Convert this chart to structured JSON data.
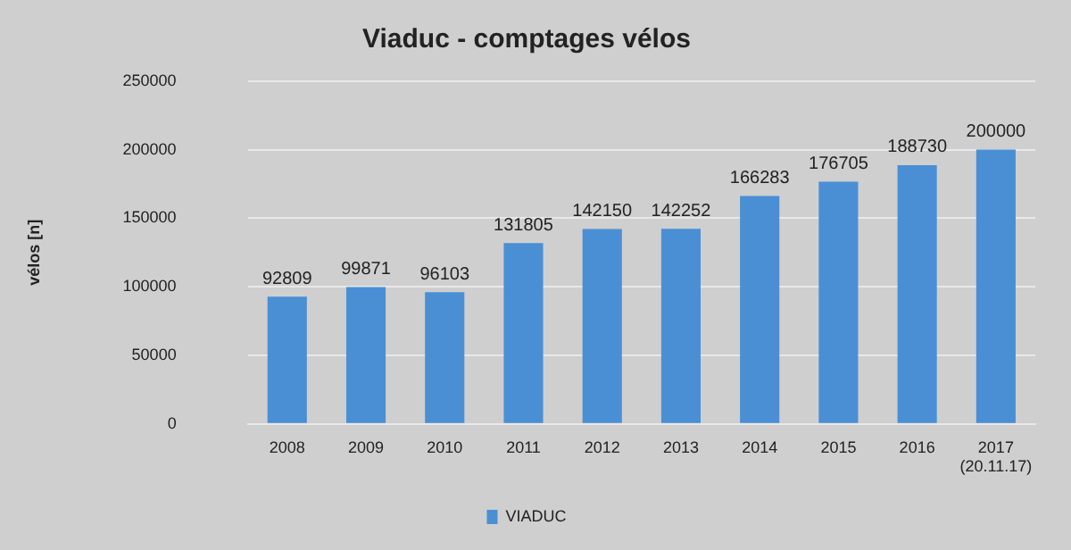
{
  "chart_data": {
    "type": "bar",
    "title": "Viaduc - comptages vélos",
    "ylabel": "vélos [n]",
    "categories": [
      "2008",
      "2009",
      "2010",
      "2011",
      "2012",
      "2013",
      "2014",
      "2015",
      "2016",
      "2017\n(20.11.17)"
    ],
    "series": [
      {
        "name": "VIADUC",
        "color": "#4a8fd4",
        "values": [
          92809,
          99871,
          96103,
          131805,
          142150,
          142252,
          166283,
          176705,
          188730,
          200000
        ]
      }
    ],
    "ylim": [
      0,
      250000
    ],
    "yticks": [
      0,
      50000,
      100000,
      150000,
      200000,
      250000
    ],
    "grid": "y",
    "legend": "bottom",
    "data_labels": true
  }
}
